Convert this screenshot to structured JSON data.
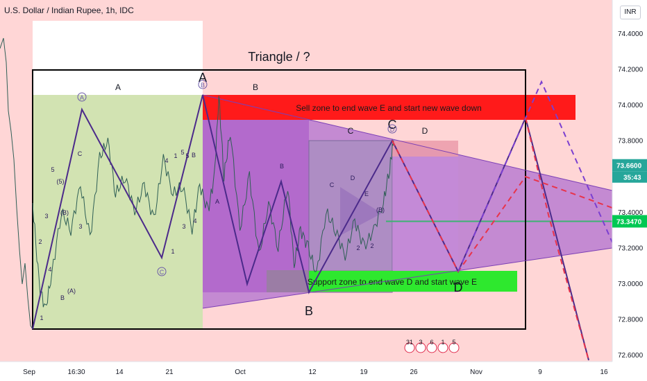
{
  "header": {
    "symbol_title": "U.S. Dollar / Indian Rupee, 1h, IDC",
    "currency_badge": "INR"
  },
  "chart_data": {
    "type": "line",
    "title": "Triangle / ?",
    "y_axis": {
      "ticks": [
        "74.4000",
        "74.2000",
        "74.0000",
        "73.8000",
        "73.4000",
        "73.2000",
        "73.0000",
        "72.8000",
        "72.6000"
      ],
      "ylim": [
        72.56,
        74.52
      ],
      "price_labels": [
        {
          "value": 73.66,
          "text": "73.6600",
          "color": "#26a69a"
        },
        {
          "value": 73.347,
          "text": "73.3470",
          "color": "#00c853"
        }
      ],
      "countdown": "35:43"
    },
    "x_axis": {
      "ticks": [
        "Sep",
        "16:30",
        "14",
        "21",
        "Oct",
        "12",
        "19",
        "26",
        "Nov",
        "9",
        "16"
      ]
    },
    "zones": [
      {
        "label": "Sell zone to end wave E and start new wave down",
        "color": "#ff1a1a",
        "from": 73.92,
        "to": 74.05
      },
      {
        "label": "Support zone to end wave D and start wave E",
        "color": "#2ee82e",
        "from": 72.96,
        "to": 73.08
      }
    ],
    "wave_labels": {
      "main": [
        "A",
        "B",
        "C",
        "D"
      ],
      "circled": [
        "A",
        "B",
        "C",
        "D"
      ],
      "pivots": [
        "A",
        "B",
        "C",
        "D"
      ],
      "small": [
        "1",
        "2",
        "3",
        "4",
        "5",
        "(5)",
        "B",
        "(B)",
        "(A)",
        "C",
        "3",
        "5",
        "B",
        "1",
        "4",
        "A",
        "B",
        "C",
        "D",
        "E",
        "(B)",
        "2",
        "2",
        "4",
        "1",
        "3",
        "5"
      ]
    },
    "price_series": {
      "name": "USDINR",
      "x": [
        0,
        10,
        20,
        30,
        45,
        60,
        75,
        90,
        105,
        118,
        130,
        145,
        160,
        175,
        190,
        205,
        220,
        235,
        250,
        262,
        275,
        285,
        292,
        300,
        310,
        325,
        340,
        355,
        370,
        385,
        400,
        410,
        420,
        432,
        445,
        460,
        475,
        490,
        505,
        520,
        535,
        550,
        560,
        566
      ],
      "y": [
        73.45,
        73.0,
        72.85,
        73.05,
        73.4,
        73.3,
        73.55,
        73.25,
        73.7,
        73.8,
        73.5,
        73.6,
        73.4,
        73.55,
        73.35,
        73.7,
        73.5,
        73.55,
        73.3,
        73.55,
        73.4,
        73.6,
        74.05,
        73.6,
        73.85,
        73.3,
        73.6,
        73.15,
        73.45,
        73.2,
        73.55,
        73.1,
        73.3,
        73.2,
        73.05,
        73.4,
        73.3,
        73.15,
        73.35,
        73.2,
        73.3,
        73.45,
        73.65,
        73.8
      ]
    },
    "grid": false,
    "legend": "none",
    "event_marks": [
      "31",
      "3",
      "6",
      "1",
      "5"
    ]
  }
}
